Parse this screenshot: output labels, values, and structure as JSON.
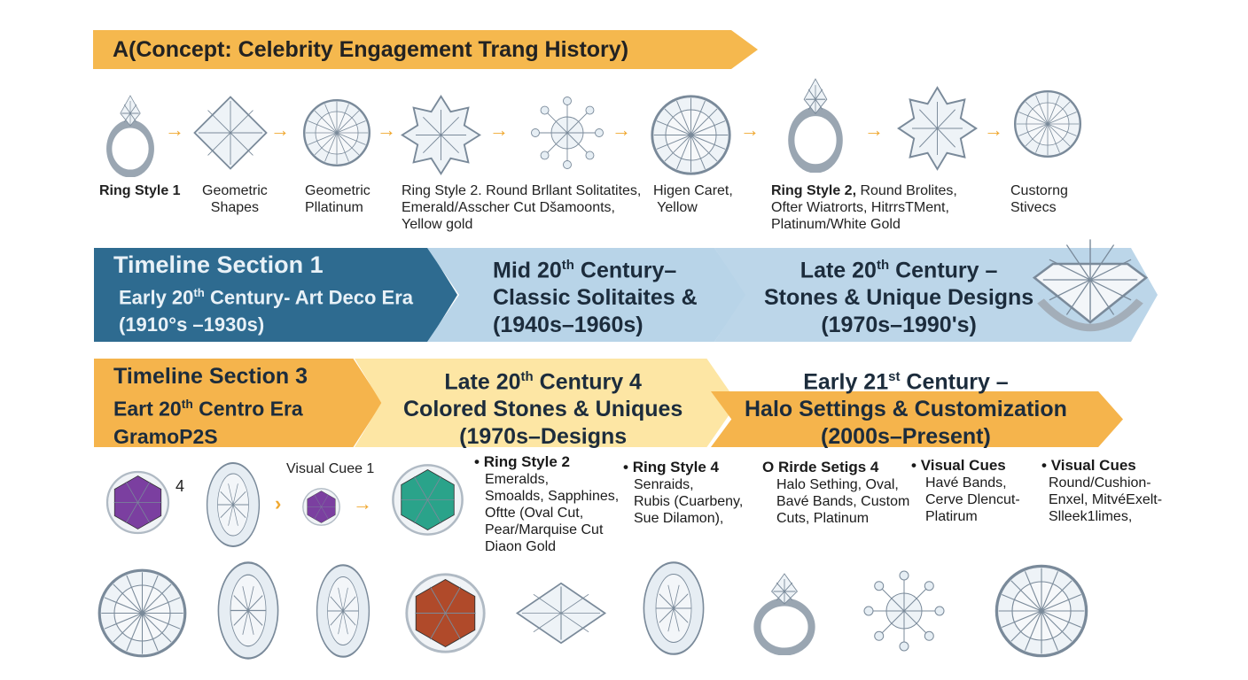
{
  "title": "A(Concept: Celebrity Engagement Trang History)",
  "top_labels": [
    {
      "bold": "Ring Style 1",
      "text": ""
    },
    {
      "bold": "",
      "text": "Geometric\nShapes"
    },
    {
      "bold": "",
      "text": "Geometric\nPllatinum"
    },
    {
      "bold": "",
      "text": "Ring Style 2. Round Brllant Solitatites,\nEmerald/Asscher Cut Dšamoonts,\nYellow gold"
    },
    {
      "bold": "",
      "text": "Higen Caret,\n Yellow"
    },
    {
      "bold": "Ring Style 2,",
      "text": " Round Brolites,\nOfter Wiatrorts, HitrrsTMent,\nPlatinum/White Gold"
    },
    {
      "bold": "",
      "text": "Custorng\nStivecs"
    }
  ],
  "blue_band": {
    "s1": {
      "l1": "Timeline Section 1",
      "l2a": "Early 20",
      "l2sup": "th",
      "l2b": " Century- Art Deco Era",
      "l3": "(1910°s –1930s)"
    },
    "s2": {
      "l1a": "Mid 20",
      "l1sup": "th",
      "l1b": " Century–",
      "l2": "Classic Solitaites &",
      "l3": "(1940s–1960s)"
    },
    "s3": {
      "l1a": "Late 20",
      "l1sup": "th",
      "l1b": " Century –",
      "l2": "Stones & Unique Designs",
      "l3": "(1970s–1990's)"
    }
  },
  "orange_band": {
    "s1": {
      "l1": "Timeline Section 3",
      "l2a": "Eart 20",
      "l2sup": "th",
      "l2b": " Centro Era",
      "l3": "GramoP2S"
    },
    "s2": {
      "l1a": "Late 20",
      "l1sup": "th",
      "l1b": " Century 4",
      "l2": "Colored Stones & Uniques",
      "l3": "(1970s–Designs"
    },
    "s3": {
      "l1a": "Early 21",
      "l1sup": "st",
      "l1b": " Century –",
      "l2": "Halo Settings & Customization",
      "l3": "(2000s–Present)"
    }
  },
  "mid_labels": {
    "num": "4",
    "visual_cue": "Visual Cuee 1"
  },
  "bullets": [
    {
      "marker": "•",
      "head": "Ring Style 2",
      "text": "Emeralds,\nSmoalds, Sapphines,\nOftte (Oval Cut,\nPear/Marquise Cut\nDiaon Gold"
    },
    {
      "marker": "•",
      "head": "Ring Style 4",
      "text": "Senraids,\nRubis (Cuarbeny,\nSue Dilamon),"
    },
    {
      "marker": "O",
      "head": "Rirde Setigs 4",
      "text": "Halo Sething, Oval,\nBavé Bands, Custom\nCuts, Platinum"
    },
    {
      "marker": "•",
      "head": "Visual Cues",
      "text": "Havé Bands,\nCerve Dlencut-\nPlatirum"
    },
    {
      "marker": "•",
      "head": "Visual Cues",
      "text": "Round/Cushion-\nEnxel, MitvéExelt-\nSlleek1limes,"
    }
  ],
  "colors": {
    "orange": "#f5b44c",
    "dark_blue": "#2e6b90",
    "light_blue": "#b8d4e8",
    "light_yellow": "#fde6a4",
    "arrow": "#f0a830",
    "emerald": "#2aa38a",
    "amethyst": "#7b3fa0",
    "ruby": "#b04a2a"
  }
}
